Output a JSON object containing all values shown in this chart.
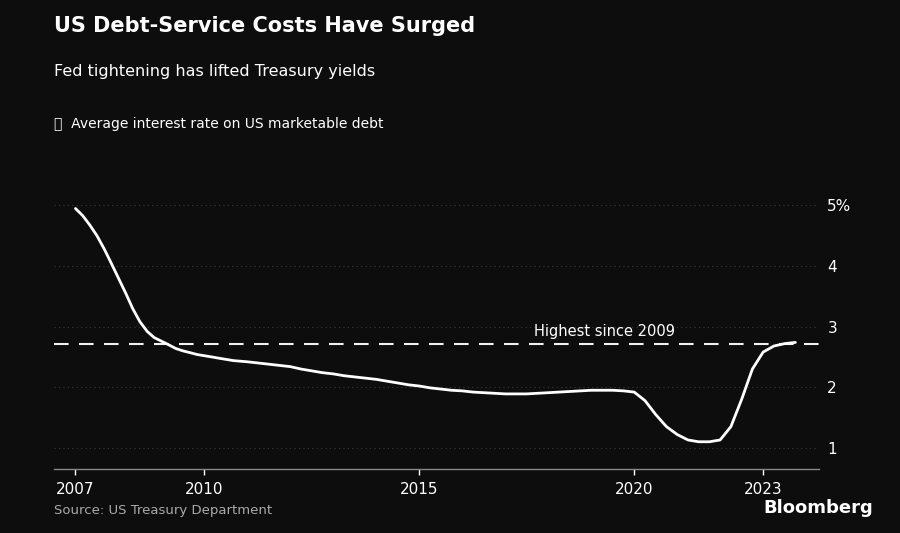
{
  "title": "US Debt-Service Costs Have Surged",
  "subtitle": "Fed tightening has lifted Treasury yields",
  "legend_label": "Average interest rate on US marketable debt",
  "source": "Source: US Treasury Department",
  "bloomberg": "Bloomberg",
  "background_color": "#0d0d0d",
  "text_color": "#ffffff",
  "line_color": "#ffffff",
  "grid_color": "#3a3a3a",
  "dashed_line_y": 2.72,
  "dashed_line_label": "Highest since 2009",
  "yticks": [
    1,
    2,
    3,
    4,
    5
  ],
  "ytick_labels": [
    "1",
    "2",
    "3",
    "4",
    "5%"
  ],
  "xlim": [
    2006.5,
    2024.3
  ],
  "ylim": [
    0.65,
    5.4
  ],
  "xticks": [
    2007,
    2010,
    2015,
    2020,
    2023
  ],
  "x": [
    2007.0,
    2007.17,
    2007.33,
    2007.5,
    2007.67,
    2007.83,
    2008.0,
    2008.17,
    2008.33,
    2008.5,
    2008.67,
    2008.83,
    2009.0,
    2009.17,
    2009.33,
    2009.5,
    2009.67,
    2009.83,
    2010.0,
    2010.17,
    2010.33,
    2010.5,
    2010.67,
    2010.83,
    2011.0,
    2011.25,
    2011.5,
    2011.75,
    2012.0,
    2012.25,
    2012.5,
    2012.75,
    2013.0,
    2013.25,
    2013.5,
    2013.75,
    2014.0,
    2014.25,
    2014.5,
    2014.75,
    2015.0,
    2015.25,
    2015.5,
    2015.75,
    2016.0,
    2016.25,
    2016.5,
    2016.75,
    2017.0,
    2017.25,
    2017.5,
    2017.75,
    2018.0,
    2018.25,
    2018.5,
    2018.75,
    2019.0,
    2019.25,
    2019.5,
    2019.75,
    2020.0,
    2020.25,
    2020.5,
    2020.75,
    2021.0,
    2021.25,
    2021.5,
    2021.75,
    2022.0,
    2022.25,
    2022.5,
    2022.75,
    2023.0,
    2023.25,
    2023.5,
    2023.75
  ],
  "y": [
    4.95,
    4.83,
    4.68,
    4.5,
    4.28,
    4.05,
    3.8,
    3.55,
    3.3,
    3.08,
    2.92,
    2.82,
    2.76,
    2.7,
    2.64,
    2.6,
    2.57,
    2.54,
    2.52,
    2.5,
    2.48,
    2.46,
    2.44,
    2.43,
    2.42,
    2.4,
    2.38,
    2.36,
    2.34,
    2.3,
    2.27,
    2.24,
    2.22,
    2.19,
    2.17,
    2.15,
    2.13,
    2.1,
    2.07,
    2.04,
    2.02,
    1.99,
    1.97,
    1.95,
    1.94,
    1.92,
    1.91,
    1.9,
    1.89,
    1.89,
    1.89,
    1.9,
    1.91,
    1.92,
    1.93,
    1.94,
    1.95,
    1.95,
    1.95,
    1.94,
    1.92,
    1.78,
    1.55,
    1.35,
    1.22,
    1.13,
    1.1,
    1.1,
    1.13,
    1.35,
    1.8,
    2.3,
    2.58,
    2.68,
    2.72,
    2.74
  ]
}
